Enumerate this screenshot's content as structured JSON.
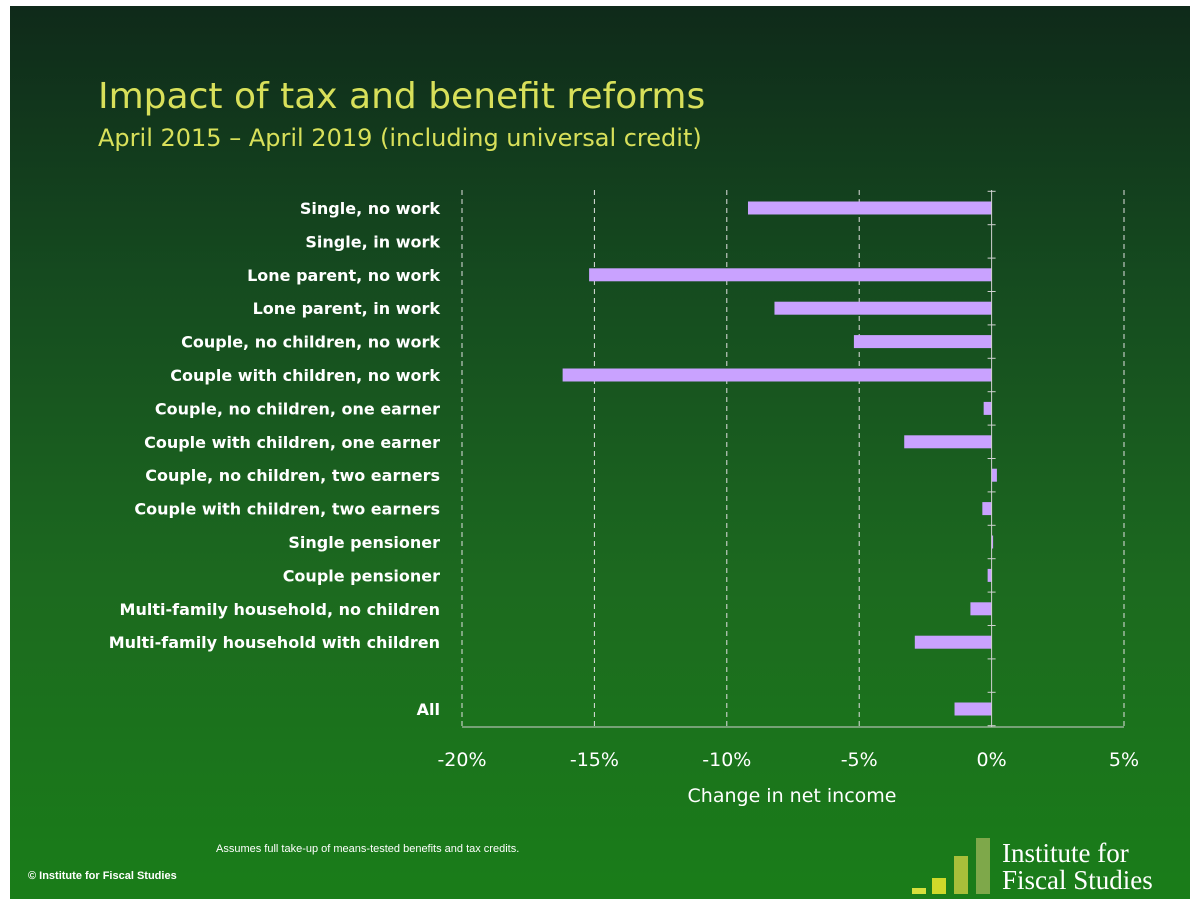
{
  "title": "Impact of tax and benefit reforms",
  "subtitle": "April 2015 – April 2019 (including universal credit)",
  "footnote": "Assumes full take-up of means-tested benefits and tax credits.",
  "copyright": "© Institute for Fiscal Studies",
  "logo": {
    "line1": "Institute for",
    "line2": "Fiscal Studies",
    "bar_colors": [
      "#d6e03c",
      "#cfd92a",
      "#a8bf3a",
      "#7ea84a"
    ]
  },
  "colors": {
    "bar": "#c9a2ff",
    "title": "#d8e05a",
    "text": "#ffffff",
    "grid": "#e0e0e0"
  },
  "chart_data": {
    "type": "bar",
    "orientation": "horizontal",
    "title": "",
    "xlabel": "Change in net income",
    "ylabel": "",
    "xlim": [
      -20,
      5
    ],
    "xticks": [
      -20,
      -15,
      -10,
      -5,
      0,
      5
    ],
    "tick_labels": [
      "-20%",
      "-15%",
      "-10%",
      "-5%",
      "0%",
      "5%"
    ],
    "grid": "vertical dashed",
    "categories": [
      "Single, no work",
      "Single, in work",
      "Lone parent, no work",
      "Lone parent, in work",
      "Couple, no children, no work",
      "Couple with children, no work",
      "Couple, no children, one earner",
      "Couple with children, one earner",
      "Couple, no children, two earners",
      "Couple with children, two earners",
      "Single pensioner",
      "Couple pensioner",
      "Multi-family household, no children",
      "Multi-family household with children",
      "",
      "All"
    ],
    "values": [
      -9.2,
      0,
      -15.2,
      -8.2,
      -5.2,
      -16.2,
      -0.3,
      -3.3,
      0.2,
      -0.35,
      0.05,
      -0.15,
      -0.8,
      -2.9,
      null,
      -1.4
    ]
  }
}
